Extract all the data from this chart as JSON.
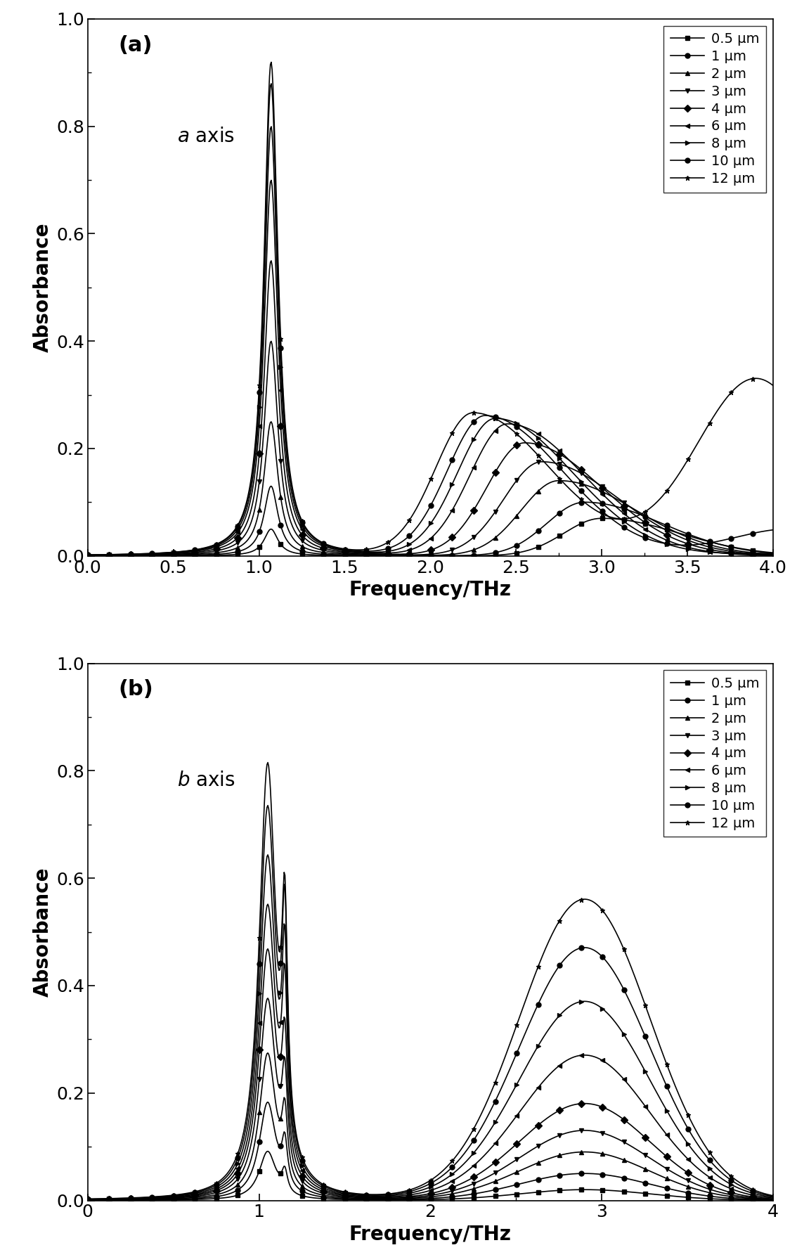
{
  "title_a": "(a)",
  "title_b": "(b)",
  "label_a": "$a$ axis",
  "label_b": "$b$ axis",
  "xlabel": "Frequency/THz",
  "ylabel": "Absorbance",
  "xlim_a": [
    0.0,
    4.0
  ],
  "xlim_b": [
    0,
    4
  ],
  "ylim": [
    0.0,
    1.0
  ],
  "xticks_a": [
    0.0,
    0.5,
    1.0,
    1.5,
    2.0,
    2.5,
    3.0,
    3.5,
    4.0
  ],
  "xticks_b": [
    0,
    1,
    2,
    3,
    4
  ],
  "yticks": [
    0.0,
    0.2,
    0.4,
    0.6,
    0.8,
    1.0
  ],
  "legend_labels": [
    "0.5 μm",
    "1 μm",
    "2 μm",
    "3 μm",
    "4 μm",
    "6 μm",
    "8 μm",
    "10 μm",
    "12 μm"
  ],
  "markers": [
    "s",
    "o",
    "^",
    "v",
    "D",
    "<",
    ">",
    "o",
    "*"
  ],
  "thicknesses": [
    0.5,
    1,
    2,
    3,
    4,
    6,
    8,
    10,
    12
  ],
  "scale_a1": [
    0.05,
    0.13,
    0.25,
    0.4,
    0.55,
    0.7,
    0.8,
    0.88,
    0.92
  ],
  "peak2a_centers": [
    3.0,
    2.9,
    2.75,
    2.65,
    2.55,
    2.45,
    2.38,
    2.32,
    2.25
  ],
  "scale_a2": [
    0.07,
    0.1,
    0.14,
    0.175,
    0.21,
    0.245,
    0.255,
    0.26,
    0.265
  ],
  "scale_a3": [
    0.0,
    0.0,
    0.0,
    0.0,
    0.0,
    0.0,
    0.005,
    0.05,
    0.33
  ],
  "peak3a_centers": [
    4.2,
    4.2,
    4.2,
    4.2,
    4.2,
    4.2,
    4.2,
    4.1,
    3.9
  ],
  "scale_b1": [
    0.09,
    0.18,
    0.27,
    0.37,
    0.46,
    0.54,
    0.63,
    0.72,
    0.8
  ],
  "scale_b2": [
    0.04,
    0.08,
    0.12,
    0.17,
    0.22,
    0.3,
    0.35,
    0.4,
    0.4
  ],
  "scale_b3": [
    0.02,
    0.05,
    0.09,
    0.13,
    0.18,
    0.27,
    0.37,
    0.47,
    0.56
  ],
  "marker_every": 25,
  "marker_size": 5,
  "linewidth": 1.2,
  "tick_labelsize": 18,
  "label_fontsize": 20,
  "title_fontsize": 22,
  "legend_fontsize": 14,
  "annot_fontsize": 20
}
